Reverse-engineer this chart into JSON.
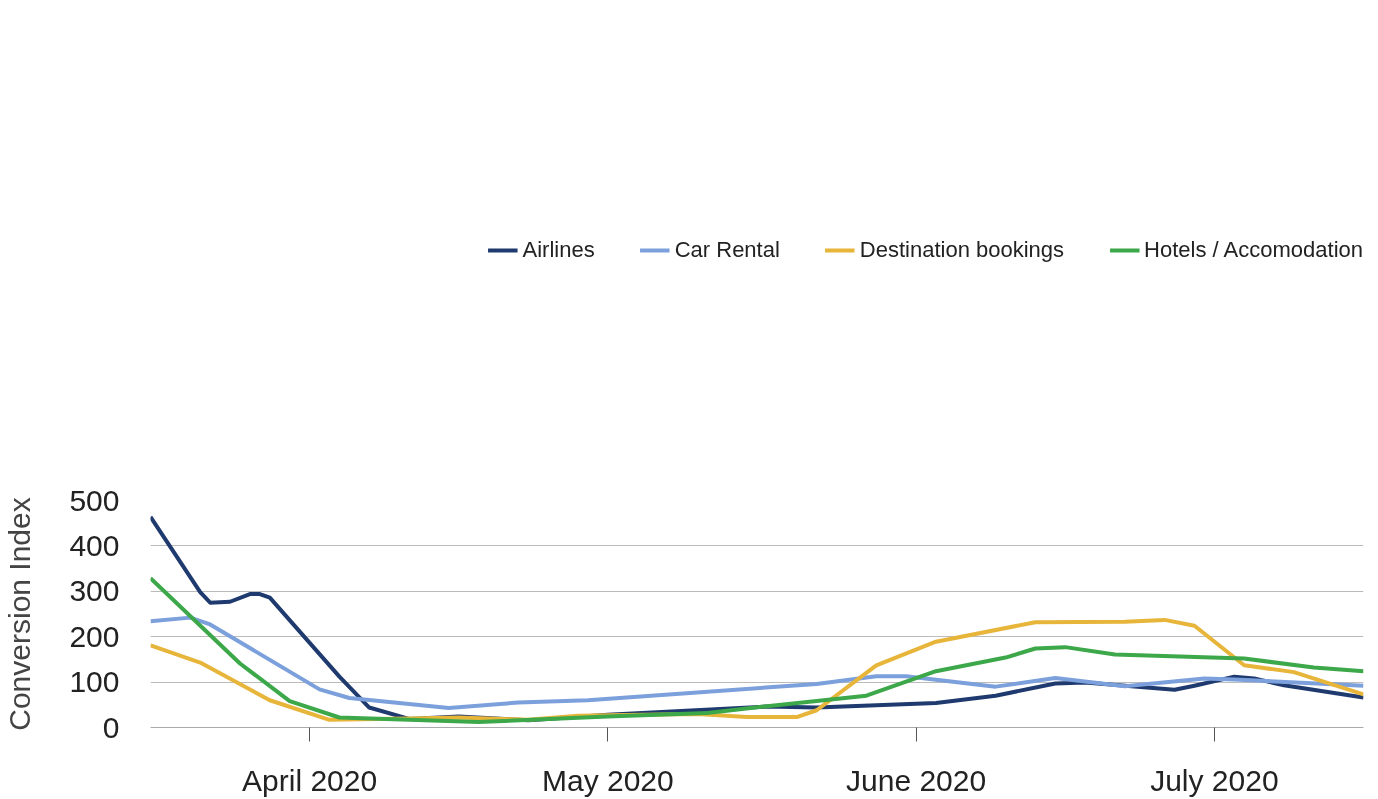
{
  "chart_data": {
    "type": "line",
    "ylabel": "Conversion Index",
    "xlim": [
      "2020-03-16",
      "2020-07-16"
    ],
    "ylim": [
      0,
      500
    ],
    "yticks": [
      0,
      100,
      200,
      300,
      400,
      500
    ],
    "xticks": [
      {
        "value": "2020-04-01",
        "label": "April 2020"
      },
      {
        "value": "2020-05-01",
        "label": "May 2020"
      },
      {
        "value": "2020-06-01",
        "label": "June 2020"
      },
      {
        "value": "2020-07-01",
        "label": "July 2020"
      }
    ],
    "grid": "y",
    "legend": "top",
    "marker": "none",
    "line_style": "solid",
    "series": [
      {
        "name": "Airlines",
        "color": "#1f3a6e",
        "x": [
          "2020-03-16",
          "2020-03-21",
          "2020-03-22",
          "2020-03-24",
          "2020-03-26",
          "2020-03-27",
          "2020-03-28",
          "2020-04-04",
          "2020-04-07",
          "2020-04-11",
          "2020-04-16",
          "2020-04-23",
          "2020-05-01",
          "2020-05-17",
          "2020-05-22",
          "2020-06-03",
          "2020-06-09",
          "2020-06-15",
          "2020-06-18",
          "2020-06-27",
          "2020-06-29",
          "2020-07-03",
          "2020-07-05",
          "2020-07-08",
          "2020-07-16"
        ],
        "values": [
          464,
          298,
          275,
          277,
          294,
          294,
          286,
          112,
          44,
          19,
          24,
          16,
          28,
          46,
          44,
          54,
          70,
          97,
          99,
          83,
          92,
          112,
          108,
          93,
          66
        ]
      },
      {
        "name": "Car Rental",
        "color": "#7ba0dc",
        "x": [
          "2020-03-16",
          "2020-03-20",
          "2020-03-22",
          "2020-04-02",
          "2020-04-05",
          "2020-04-15",
          "2020-04-22",
          "2020-04-29",
          "2020-05-22",
          "2020-05-28",
          "2020-05-31",
          "2020-06-09",
          "2020-06-15",
          "2020-06-22",
          "2020-06-30",
          "2020-07-03",
          "2020-07-16"
        ],
        "values": [
          234,
          242,
          227,
          84,
          65,
          43,
          55,
          60,
          96,
          113,
          113,
          90,
          109,
          91,
          108,
          106,
          92
        ]
      },
      {
        "name": "Destination bookings",
        "color": "#e7b53a",
        "x": [
          "2020-03-16",
          "2020-03-21",
          "2020-03-28",
          "2020-04-03",
          "2020-04-11",
          "2020-04-16",
          "2020-04-23",
          "2020-04-28",
          "2020-05-01",
          "2020-05-10",
          "2020-05-15",
          "2020-05-20",
          "2020-05-22",
          "2020-05-28",
          "2020-06-03",
          "2020-06-13",
          "2020-06-22",
          "2020-06-26",
          "2020-06-29",
          "2020-07-04",
          "2020-07-09",
          "2020-07-16"
        ],
        "values": [
          181,
          143,
          60,
          17,
          20,
          22,
          17,
          26,
          27,
          30,
          23,
          23,
          38,
          137,
          189,
          232,
          233,
          237,
          224,
          137,
          122,
          73
        ]
      },
      {
        "name": "Hotels / Accomodation",
        "color": "#3ca84a",
        "x": [
          "2020-03-16",
          "2020-03-25",
          "2020-03-30",
          "2020-04-04",
          "2020-04-11",
          "2020-04-18",
          "2020-05-01",
          "2020-05-11",
          "2020-05-17",
          "2020-05-27",
          "2020-06-03",
          "2020-06-10",
          "2020-06-13",
          "2020-06-16",
          "2020-06-21",
          "2020-07-04",
          "2020-07-11",
          "2020-07-16"
        ],
        "values": [
          329,
          141,
          58,
          22,
          17,
          12,
          24,
          32,
          47,
          70,
          124,
          154,
          174,
          177,
          161,
          152,
          132,
          124
        ]
      }
    ]
  }
}
